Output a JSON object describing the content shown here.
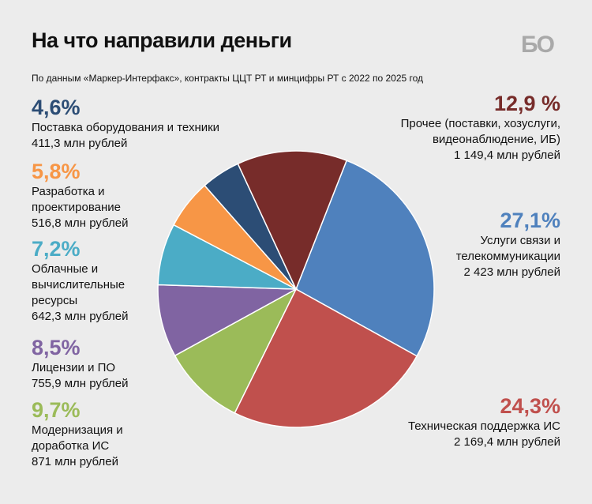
{
  "title": "На что направили деньги",
  "subtitle": "По данным «Маркер-Интерфакс», контракты ЦЦТ РТ и минцифры РТ с 2022 по 2025 год",
  "logo": "БО",
  "chart_data": {
    "type": "pie",
    "title": "На что направили деньги",
    "unit": "%",
    "slices": [
      {
        "name": "Услуги связи и телекоммуникации",
        "pct_label": "27,1%",
        "value": 27.1,
        "amount": "2 423 млн рублей",
        "color": "#4f81bd"
      },
      {
        "name": "Техническая поддержка ИС",
        "pct_label": "24,3%",
        "value": 24.3,
        "amount": "2 169,4 млн рублей",
        "color": "#c0504d"
      },
      {
        "name": "Модернизация и доработка ИС",
        "pct_label": "9,7%",
        "value": 9.7,
        "amount": "871 млн рублей",
        "color": "#9bbb59"
      },
      {
        "name": "Лицензии и ПО",
        "pct_label": "8,5%",
        "value": 8.5,
        "amount": "755,9 млн рублей",
        "color": "#8064a2"
      },
      {
        "name": "Облачные и вычислительные ресурсы",
        "pct_label": "7,2%",
        "value": 7.2,
        "amount": "642,3 млн рублей",
        "color": "#4bacc6"
      },
      {
        "name": "Разработка и проектирование",
        "pct_label": "5,8%",
        "value": 5.8,
        "amount": "516,8 млн рублей",
        "color": "#f79646"
      },
      {
        "name": "Поставка оборудования и техники",
        "pct_label": "4,6%",
        "value": 4.6,
        "amount": "411,3 млн рублей",
        "color": "#2c4d75"
      },
      {
        "name": "Прочее (поставки, хозуслуги, видеонаблюдение, ИБ)",
        "pct_label": "12,9 %",
        "value": 12.9,
        "amount": "1 149,4 млн рублей",
        "color": "#772c2a"
      }
    ]
  }
}
